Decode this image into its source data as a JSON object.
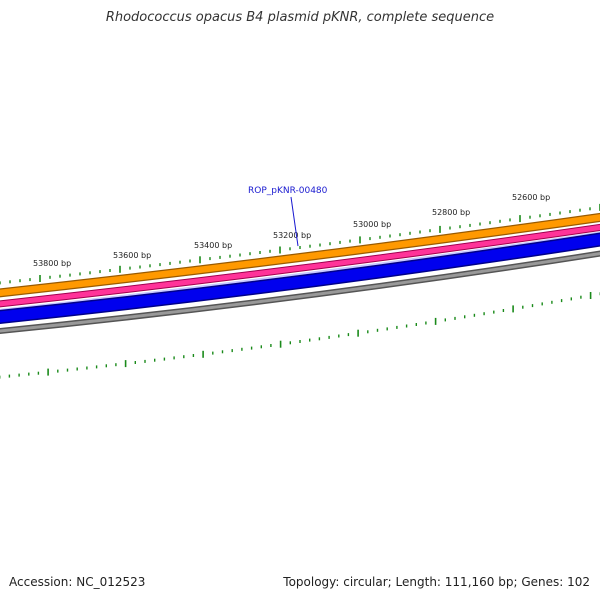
{
  "header": {
    "title": "Rhodococcus opacus B4 plasmid pKNR, complete sequence"
  },
  "footer": {
    "accession": "Accession: NC_012523",
    "stats": "Topology: circular; Length: 111,160 bp; Genes: 102"
  },
  "map": {
    "gene_label": "ROP_pKNR-00480",
    "tick_labels": [
      "53800 bp",
      "53600 bp",
      "53400 bp",
      "53200 bp",
      "53000 bp",
      "52800 bp",
      "52600 bp"
    ],
    "colors": {
      "orange": "#ff9900",
      "magenta": "#ff3399",
      "blue": "#0000ee",
      "gray": "#777777",
      "tick": "#1a8a1a",
      "label_line": "#1a1ad0"
    }
  }
}
